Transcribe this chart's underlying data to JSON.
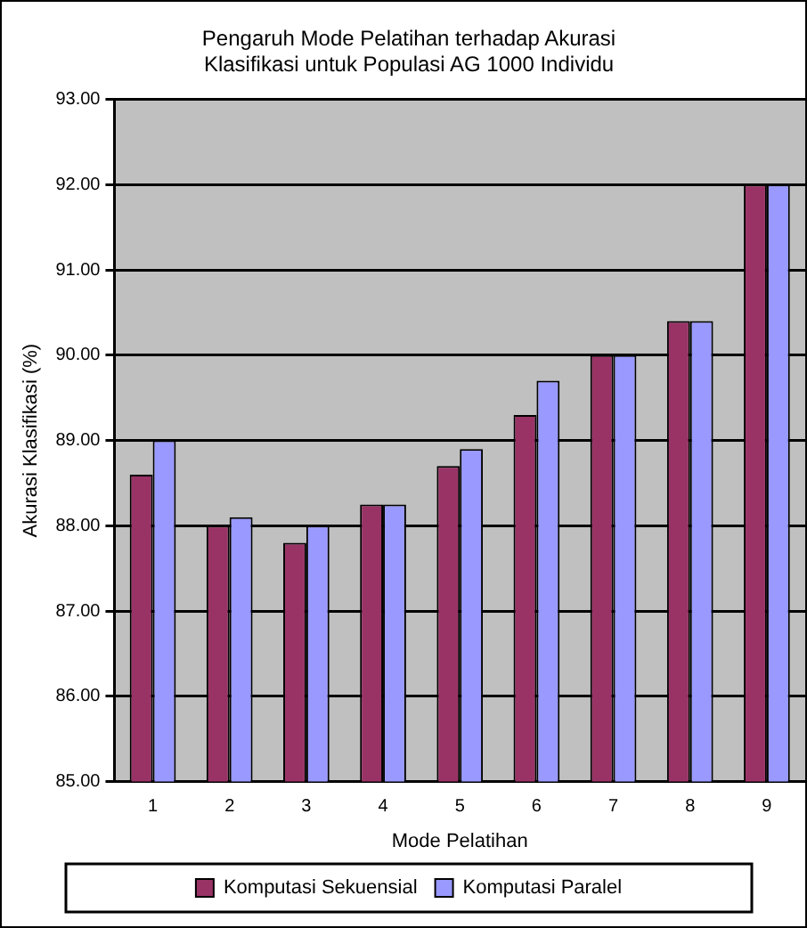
{
  "chart_data": {
    "type": "bar",
    "title": [
      "Pengaruh Mode Pelatihan terhadap Akurasi",
      "Klasifikasi untuk Populasi AG 1000 Individu"
    ],
    "xlabel": "Mode Pelatihan",
    "ylabel": "Akurasi Klasifikasi (%)",
    "categories": [
      "1",
      "2",
      "3",
      "4",
      "5",
      "6",
      "7",
      "8",
      "9"
    ],
    "series": [
      {
        "name": "Komputasi Sekuensial",
        "color": "#993366",
        "values": [
          88.6,
          88.0,
          87.8,
          88.25,
          88.7,
          89.3,
          90.0,
          90.4,
          92.0
        ]
      },
      {
        "name": "Komputasi Paralel",
        "color": "#9999ff",
        "values": [
          89.0,
          88.1,
          88.0,
          88.25,
          88.9,
          89.7,
          90.0,
          90.4,
          92.0
        ]
      }
    ],
    "ylim": [
      85,
      93
    ],
    "yticks": [
      {
        "value": 85,
        "label": "85.00"
      },
      {
        "value": 86,
        "label": "86.00"
      },
      {
        "value": 87,
        "label": "87.00"
      },
      {
        "value": 88,
        "label": "88.00"
      },
      {
        "value": 89,
        "label": "89.00"
      },
      {
        "value": 90,
        "label": "90.00"
      },
      {
        "value": 91,
        "label": "91.00"
      },
      {
        "value": 92,
        "label": "92.00"
      },
      {
        "value": 93,
        "label": "93.00"
      }
    ],
    "grid": "y",
    "legend": "bottom"
  }
}
